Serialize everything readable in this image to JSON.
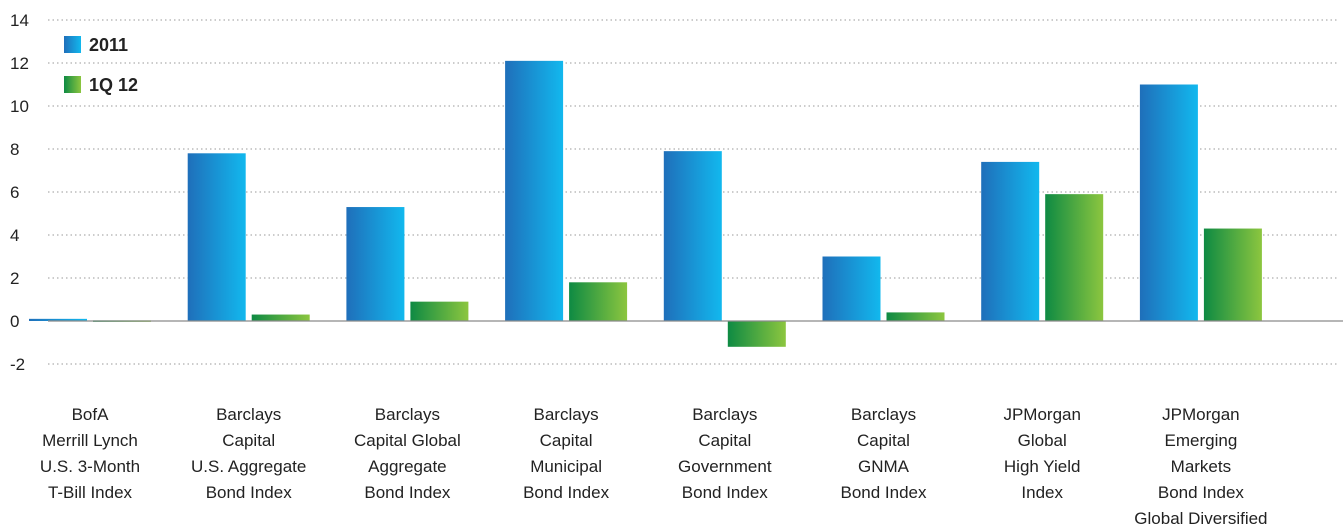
{
  "chart_data": {
    "type": "bar",
    "title": "",
    "xlabel": "",
    "ylabel": "",
    "ylim": [
      -2,
      14
    ],
    "yticks": [
      -2,
      0,
      2,
      4,
      6,
      8,
      10,
      12,
      14
    ],
    "grid": true,
    "legend_position": "top-left",
    "categories": [
      [
        "BofA",
        "Merrill Lynch",
        "U.S. 3-Month",
        "T-Bill Index"
      ],
      [
        "Barclays",
        "Capital",
        "U.S. Aggregate",
        "Bond Index"
      ],
      [
        "Barclays",
        "Capital Global",
        "Aggregate",
        "Bond Index"
      ],
      [
        "Barclays",
        "Capital",
        "Municipal",
        "Bond Index"
      ],
      [
        "Barclays",
        "Capital",
        "Government",
        "Bond Index"
      ],
      [
        "Barclays",
        "Capital",
        "GNMA",
        "Bond Index"
      ],
      [
        "JPMorgan",
        "Global",
        "High Yield",
        "Index"
      ],
      [
        "JPMorgan",
        "Emerging",
        "Markets",
        "Bond Index",
        "Global Diversified"
      ]
    ],
    "series": [
      {
        "name": "2011",
        "color_dark": "#1f6fba",
        "color_light": "#12b8ee",
        "values": [
          0.1,
          7.8,
          5.3,
          12.1,
          7.9,
          3.0,
          7.4,
          11.0
        ]
      },
      {
        "name": "1Q 12",
        "color_dark": "#0e8a43",
        "color_light": "#8cc63f",
        "values": [
          0.03,
          0.3,
          0.9,
          1.8,
          -1.2,
          0.4,
          5.9,
          4.3
        ]
      }
    ]
  }
}
